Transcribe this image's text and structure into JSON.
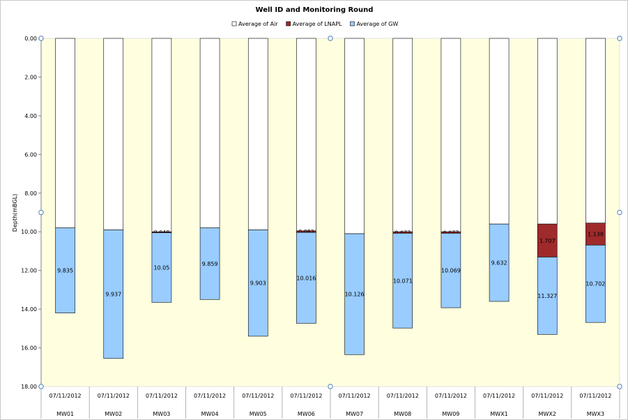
{
  "chart_data": {
    "type": "bar",
    "stacked": true,
    "title": "Well ID and Monitoring Round",
    "ylabel": "Depth(mBGL)",
    "xlabel": "",
    "ylim": [
      0,
      18
    ],
    "y_inverted": true,
    "y_ticks": [
      "0.00",
      "2.00",
      "4.00",
      "6.00",
      "8.00",
      "10.00",
      "12.00",
      "14.00",
      "16.00",
      "18.00"
    ],
    "legend_position": "top",
    "categories": [
      "MW01",
      "MW02",
      "MW03",
      "MW04",
      "MW05",
      "MW06",
      "MW07",
      "MW08",
      "MW09",
      "MWX1",
      "MWX2",
      "MWX3"
    ],
    "dates": [
      "07/11/2012",
      "07/11/2012",
      "07/11/2012",
      "07/11/2012",
      "07/11/2012",
      "07/11/2012",
      "07/11/2012",
      "07/11/2012",
      "07/11/2012",
      "07/11/2012",
      "07/11/2012",
      "07/11/2012"
    ],
    "series": [
      {
        "name": "Average of Air",
        "color": "#ffffff",
        "values": [
          9.8,
          9.9,
          10.0,
          9.8,
          9.9,
          9.95,
          10.1,
          10.0,
          10.0,
          9.6,
          9.6,
          9.55
        ],
        "labels": [
          "",
          "",
          "",
          "",
          "",
          "",
          "",
          "",
          "",
          "",
          "",
          ""
        ]
      },
      {
        "name": "Average of LNAPL",
        "color": "#9e2a2b",
        "values": [
          0,
          0,
          0.048,
          0,
          0,
          0.082,
          0,
          0.077,
          0.077,
          0,
          1.707,
          1.138
        ],
        "labels": [
          "",
          "",
          "0.048",
          "",
          "",
          "0.082",
          "",
          "0.077",
          "0.077",
          "",
          "1.707",
          "1.138"
        ]
      },
      {
        "name": "Average of GW",
        "color": "#99ccff",
        "values": [
          4.4,
          6.65,
          3.6,
          3.7,
          5.5,
          4.7,
          6.25,
          4.9,
          3.85,
          4.0,
          4.0,
          4.0
        ],
        "labels": [
          "9.835",
          "9.937",
          "10.05",
          "9.859",
          "9.903",
          "10.016",
          "10.126",
          "10.071",
          "10.069",
          "9.632",
          "11.327",
          "10.702"
        ]
      }
    ],
    "colors": {
      "plot_background": "#ffffe0",
      "bar_outline": "#000000",
      "handle": "#4f81bd"
    }
  }
}
